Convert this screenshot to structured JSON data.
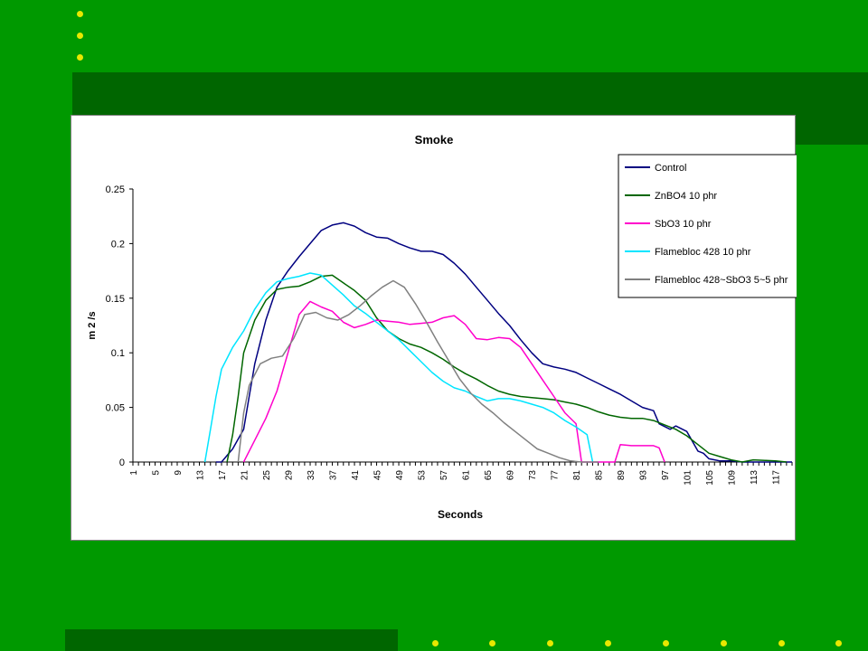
{
  "slide": {
    "background": "#009900",
    "band_color": "#006600",
    "bullet_color": "#e8e800"
  },
  "chart_data": {
    "type": "line",
    "title": "Smoke",
    "xlabel": "Seconds",
    "ylabel": "m 2 /s",
    "ylim": [
      0,
      0.25
    ],
    "yticks": [
      "0",
      "0.05",
      "0.1",
      "0.15",
      "0.2",
      "0.25"
    ],
    "xlim": [
      1,
      120
    ],
    "xticks": [
      1,
      5,
      9,
      13,
      17,
      21,
      25,
      29,
      33,
      37,
      41,
      45,
      49,
      53,
      57,
      61,
      65,
      69,
      73,
      77,
      81,
      85,
      89,
      93,
      97,
      101,
      105,
      109,
      113,
      117
    ],
    "grid": false,
    "legend_position": "top-right",
    "series": [
      {
        "name": "Control",
        "color": "#000080",
        "points": [
          [
            16,
            0
          ],
          [
            17,
            0
          ],
          [
            19,
            0.012
          ],
          [
            21,
            0.03
          ],
          [
            22,
            0.06
          ],
          [
            23,
            0.09
          ],
          [
            25,
            0.13
          ],
          [
            27,
            0.16
          ],
          [
            29,
            0.175
          ],
          [
            31,
            0.188
          ],
          [
            33,
            0.2
          ],
          [
            35,
            0.212
          ],
          [
            37,
            0.217
          ],
          [
            39,
            0.219
          ],
          [
            41,
            0.216
          ],
          [
            43,
            0.21
          ],
          [
            45,
            0.206
          ],
          [
            47,
            0.205
          ],
          [
            49,
            0.2
          ],
          [
            51,
            0.196
          ],
          [
            53,
            0.193
          ],
          [
            55,
            0.193
          ],
          [
            57,
            0.19
          ],
          [
            59,
            0.182
          ],
          [
            61,
            0.172
          ],
          [
            63,
            0.16
          ],
          [
            65,
            0.148
          ],
          [
            67,
            0.136
          ],
          [
            69,
            0.125
          ],
          [
            71,
            0.112
          ],
          [
            73,
            0.1
          ],
          [
            75,
            0.09
          ],
          [
            77,
            0.087
          ],
          [
            79,
            0.085
          ],
          [
            81,
            0.082
          ],
          [
            83,
            0.077
          ],
          [
            85,
            0.072
          ],
          [
            87,
            0.067
          ],
          [
            89,
            0.062
          ],
          [
            91,
            0.056
          ],
          [
            93,
            0.05
          ],
          [
            95,
            0.047
          ],
          [
            96,
            0.035
          ],
          [
            98,
            0.03
          ],
          [
            99,
            0.033
          ],
          [
            101,
            0.028
          ],
          [
            103,
            0.01
          ],
          [
            104,
            0.008
          ],
          [
            105,
            0.003
          ],
          [
            107,
            0.001
          ],
          [
            109,
            0.001
          ],
          [
            111,
            0
          ],
          [
            120,
            0
          ]
        ]
      },
      {
        "name": "ZnBO4 10 phr",
        "color": "#006600",
        "points": [
          [
            18,
            0
          ],
          [
            19,
            0.025
          ],
          [
            20,
            0.06
          ],
          [
            21,
            0.1
          ],
          [
            23,
            0.13
          ],
          [
            25,
            0.148
          ],
          [
            27,
            0.158
          ],
          [
            29,
            0.16
          ],
          [
            31,
            0.161
          ],
          [
            33,
            0.165
          ],
          [
            35,
            0.17
          ],
          [
            37,
            0.171
          ],
          [
            39,
            0.164
          ],
          [
            41,
            0.157
          ],
          [
            43,
            0.148
          ],
          [
            45,
            0.132
          ],
          [
            47,
            0.12
          ],
          [
            49,
            0.113
          ],
          [
            51,
            0.108
          ],
          [
            53,
            0.105
          ],
          [
            55,
            0.1
          ],
          [
            57,
            0.094
          ],
          [
            59,
            0.087
          ],
          [
            61,
            0.081
          ],
          [
            63,
            0.076
          ],
          [
            65,
            0.07
          ],
          [
            67,
            0.065
          ],
          [
            69,
            0.062
          ],
          [
            71,
            0.06
          ],
          [
            73,
            0.059
          ],
          [
            75,
            0.058
          ],
          [
            77,
            0.057
          ],
          [
            79,
            0.055
          ],
          [
            81,
            0.053
          ],
          [
            83,
            0.05
          ],
          [
            85,
            0.046
          ],
          [
            87,
            0.043
          ],
          [
            89,
            0.041
          ],
          [
            91,
            0.04
          ],
          [
            93,
            0.04
          ],
          [
            95,
            0.038
          ],
          [
            97,
            0.034
          ],
          [
            99,
            0.03
          ],
          [
            101,
            0.024
          ],
          [
            103,
            0.016
          ],
          [
            105,
            0.008
          ],
          [
            107,
            0.005
          ],
          [
            109,
            0.002
          ],
          [
            111,
            0
          ],
          [
            113,
            0.002
          ],
          [
            117,
            0.001
          ],
          [
            119,
            0
          ]
        ]
      },
      {
        "name": "SbO3 10 phr",
        "color": "#ff00cc",
        "points": [
          [
            21,
            0
          ],
          [
            23,
            0.02
          ],
          [
            25,
            0.04
          ],
          [
            27,
            0.065
          ],
          [
            29,
            0.1
          ],
          [
            31,
            0.135
          ],
          [
            33,
            0.147
          ],
          [
            35,
            0.142
          ],
          [
            37,
            0.138
          ],
          [
            39,
            0.128
          ],
          [
            41,
            0.123
          ],
          [
            43,
            0.126
          ],
          [
            45,
            0.13
          ],
          [
            47,
            0.129
          ],
          [
            49,
            0.128
          ],
          [
            51,
            0.126
          ],
          [
            53,
            0.127
          ],
          [
            55,
            0.128
          ],
          [
            57,
            0.132
          ],
          [
            59,
            0.134
          ],
          [
            61,
            0.126
          ],
          [
            63,
            0.113
          ],
          [
            65,
            0.112
          ],
          [
            67,
            0.114
          ],
          [
            69,
            0.113
          ],
          [
            71,
            0.105
          ],
          [
            73,
            0.09
          ],
          [
            75,
            0.075
          ],
          [
            77,
            0.06
          ],
          [
            79,
            0.045
          ],
          [
            81,
            0.035
          ],
          [
            82,
            0.0
          ],
          [
            88,
            0.0
          ],
          [
            89,
            0.016
          ],
          [
            91,
            0.015
          ],
          [
            93,
            0.015
          ],
          [
            95,
            0.015
          ],
          [
            96,
            0.013
          ],
          [
            97,
            0
          ]
        ]
      },
      {
        "name": "Flamebloc 428 10 phr",
        "color": "#00e5ff",
        "points": [
          [
            14,
            0
          ],
          [
            15,
            0.03
          ],
          [
            16,
            0.06
          ],
          [
            17,
            0.085
          ],
          [
            19,
            0.105
          ],
          [
            21,
            0.12
          ],
          [
            23,
            0.14
          ],
          [
            25,
            0.155
          ],
          [
            27,
            0.165
          ],
          [
            29,
            0.168
          ],
          [
            31,
            0.17
          ],
          [
            33,
            0.173
          ],
          [
            35,
            0.171
          ],
          [
            37,
            0.162
          ],
          [
            39,
            0.153
          ],
          [
            41,
            0.143
          ],
          [
            43,
            0.136
          ],
          [
            45,
            0.128
          ],
          [
            47,
            0.12
          ],
          [
            49,
            0.112
          ],
          [
            51,
            0.102
          ],
          [
            53,
            0.092
          ],
          [
            55,
            0.082
          ],
          [
            57,
            0.074
          ],
          [
            59,
            0.068
          ],
          [
            61,
            0.065
          ],
          [
            63,
            0.06
          ],
          [
            65,
            0.056
          ],
          [
            67,
            0.058
          ],
          [
            69,
            0.058
          ],
          [
            71,
            0.056
          ],
          [
            73,
            0.053
          ],
          [
            75,
            0.05
          ],
          [
            77,
            0.045
          ],
          [
            79,
            0.038
          ],
          [
            81,
            0.032
          ],
          [
            83,
            0.025
          ],
          [
            84,
            0.0
          ]
        ]
      },
      {
        "name": "Flamebloc 428~SbO3 5~5 phr",
        "color": "#808080",
        "points": [
          [
            20,
            0
          ],
          [
            21,
            0.045
          ],
          [
            22,
            0.07
          ],
          [
            24,
            0.09
          ],
          [
            26,
            0.095
          ],
          [
            28,
            0.097
          ],
          [
            30,
            0.113
          ],
          [
            32,
            0.135
          ],
          [
            34,
            0.137
          ],
          [
            36,
            0.132
          ],
          [
            38,
            0.13
          ],
          [
            40,
            0.135
          ],
          [
            42,
            0.143
          ],
          [
            44,
            0.152
          ],
          [
            46,
            0.16
          ],
          [
            48,
            0.166
          ],
          [
            50,
            0.16
          ],
          [
            52,
            0.145
          ],
          [
            54,
            0.128
          ],
          [
            56,
            0.11
          ],
          [
            58,
            0.093
          ],
          [
            60,
            0.076
          ],
          [
            62,
            0.063
          ],
          [
            64,
            0.053
          ],
          [
            66,
            0.045
          ],
          [
            68,
            0.036
          ],
          [
            70,
            0.028
          ],
          [
            72,
            0.02
          ],
          [
            74,
            0.012
          ],
          [
            76,
            0.008
          ],
          [
            78,
            0.004
          ],
          [
            80,
            0.001
          ],
          [
            82,
            0
          ],
          [
            85,
            0
          ]
        ]
      }
    ]
  }
}
